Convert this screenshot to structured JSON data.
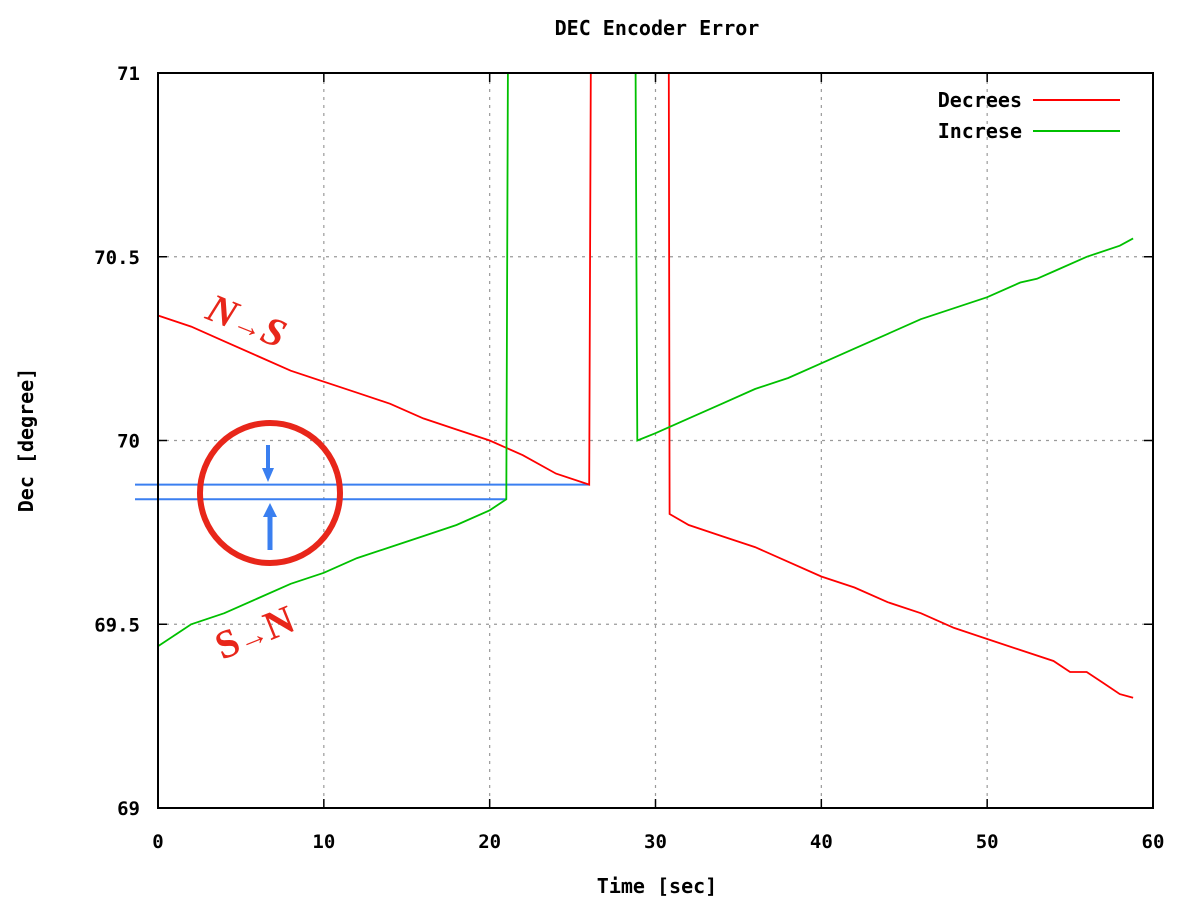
{
  "chart_data": {
    "type": "line",
    "title": "DEC Encoder Error",
    "xlabel": "Time [sec]",
    "ylabel": "Dec [degree]",
    "xlim": [
      0,
      60
    ],
    "ylim": [
      69,
      71
    ],
    "xticks": [
      "0",
      "10",
      "20",
      "30",
      "40",
      "50",
      "60"
    ],
    "yticks": [
      "69",
      "69.5",
      "70",
      "70.5",
      "71"
    ],
    "grid": true,
    "legend": "top-right",
    "series": [
      {
        "name": "Decrees",
        "color": "#ff0000",
        "segments": [
          [
            [
              0,
              70.34
            ],
            [
              2,
              70.31
            ],
            [
              4,
              70.27
            ],
            [
              6,
              70.23
            ],
            [
              8,
              70.19
            ],
            [
              10,
              70.16
            ],
            [
              12,
              70.13
            ],
            [
              14,
              70.1
            ],
            [
              16,
              70.06
            ],
            [
              18,
              70.03
            ],
            [
              20,
              70.0
            ],
            [
              22,
              69.96
            ],
            [
              24,
              69.91
            ],
            [
              26,
              69.88
            ],
            [
              26.05,
              70.45
            ],
            [
              26.1,
              71.0
            ]
          ],
          [
            [
              30.8,
              71.0
            ],
            [
              30.85,
              69.8
            ],
            [
              32,
              69.77
            ],
            [
              34,
              69.74
            ],
            [
              36,
              69.71
            ],
            [
              38,
              69.67
            ],
            [
              40,
              69.63
            ],
            [
              42,
              69.6
            ],
            [
              44,
              69.56
            ],
            [
              46,
              69.53
            ],
            [
              48,
              69.49
            ],
            [
              50,
              69.46
            ],
            [
              52,
              69.43
            ],
            [
              54,
              69.4
            ],
            [
              55,
              69.37
            ],
            [
              56,
              69.37
            ],
            [
              57,
              69.34
            ],
            [
              58,
              69.31
            ],
            [
              58.8,
              69.3
            ]
          ]
        ]
      },
      {
        "name": "Increse",
        "color": "#00c000",
        "segments": [
          [
            [
              0,
              69.44
            ],
            [
              1,
              69.47
            ],
            [
              2,
              69.5
            ],
            [
              4,
              69.53
            ],
            [
              6,
              69.57
            ],
            [
              8,
              69.61
            ],
            [
              10,
              69.64
            ],
            [
              12,
              69.68
            ],
            [
              14,
              69.71
            ],
            [
              16,
              69.74
            ],
            [
              18,
              69.77
            ],
            [
              20,
              69.81
            ],
            [
              21,
              69.84
            ],
            [
              21.05,
              70.42
            ],
            [
              21.1,
              71.0
            ]
          ],
          [
            [
              28.8,
              71.0
            ],
            [
              28.85,
              70.5
            ],
            [
              28.9,
              70.0
            ],
            [
              30,
              70.02
            ],
            [
              32,
              70.06
            ],
            [
              34,
              70.1
            ],
            [
              36,
              70.14
            ],
            [
              38,
              70.17
            ],
            [
              40,
              70.21
            ],
            [
              42,
              70.25
            ],
            [
              44,
              70.29
            ],
            [
              46,
              70.33
            ],
            [
              48,
              70.36
            ],
            [
              50,
              70.39
            ],
            [
              52,
              70.43
            ],
            [
              53,
              70.44
            ],
            [
              54,
              70.46
            ],
            [
              56,
              70.5
            ],
            [
              58,
              70.53
            ],
            [
              58.8,
              70.55
            ]
          ]
        ]
      }
    ],
    "annotations": {
      "ns_label_n": "N",
      "ns_label_arrow": "→",
      "ns_label_s": "S",
      "sn_label_s": "S",
      "sn_label_arrow": "→",
      "sn_label_n": "N",
      "ref_lines_y": [
        69.88,
        69.84
      ],
      "ref_lines_x_end": [
        26,
        21
      ],
      "highlight_color": "#e8261a",
      "marker_color": "#3a7ff0"
    }
  }
}
